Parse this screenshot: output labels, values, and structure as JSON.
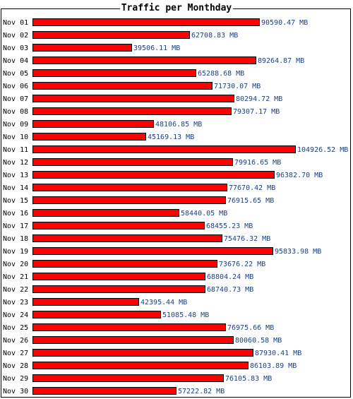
{
  "chart_data": {
    "type": "bar",
    "orientation": "horizontal",
    "title": "Traffic per Monthday",
    "unit": "MB",
    "categories": [
      "Nov 01",
      "Nov 02",
      "Nov 03",
      "Nov 04",
      "Nov 05",
      "Nov 06",
      "Nov 07",
      "Nov 08",
      "Nov 09",
      "Nov 10",
      "Nov 11",
      "Nov 12",
      "Nov 13",
      "Nov 14",
      "Nov 15",
      "Nov 16",
      "Nov 17",
      "Nov 18",
      "Nov 19",
      "Nov 20",
      "Nov 21",
      "Nov 22",
      "Nov 23",
      "Nov 24",
      "Nov 25",
      "Nov 26",
      "Nov 27",
      "Nov 28",
      "Nov 29",
      "Nov 30"
    ],
    "values": [
      90590.47,
      62708.83,
      39506.11,
      89264.87,
      65288.68,
      71730.07,
      80294.72,
      79307.17,
      48106.85,
      45169.13,
      104926.52,
      79916.65,
      96382.7,
      77670.42,
      76915.65,
      58440.05,
      68455.23,
      75476.32,
      95833.98,
      73676.22,
      68804.24,
      68740.73,
      42395.44,
      51085.48,
      76975.66,
      80060.58,
      87930.41,
      86103.89,
      76105.83,
      57222.82
    ],
    "value_labels": [
      "90590.47 MB",
      "62708.83 MB",
      "39506.11 MB",
      "89264.87 MB",
      "65288.68 MB",
      "71730.07 MB",
      "80294.72 MB",
      "79307.17 MB",
      "48106.85 MB",
      "45169.13 MB",
      "104926.52 MB",
      "79916.65 MB",
      "96382.70 MB",
      "77670.42 MB",
      "76915.65 MB",
      "58440.05 MB",
      "68455.23 MB",
      "75476.32 MB",
      "95833.98 MB",
      "73676.22 MB",
      "68804.24 MB",
      "68740.73 MB",
      "42395.44 MB",
      "51085.48 MB",
      "76975.66 MB",
      "80060.58 MB",
      "87930.41 MB",
      "86103.89 MB",
      "76105.83 MB",
      "57222.82 MB"
    ],
    "xlim": [
      0,
      104926.52
    ],
    "grid": false,
    "legend": "none",
    "colors": {
      "bar": "#ff0000",
      "bar_outline": "#000000",
      "value_label": "#1f3f7f",
      "frame": "#000000"
    }
  }
}
